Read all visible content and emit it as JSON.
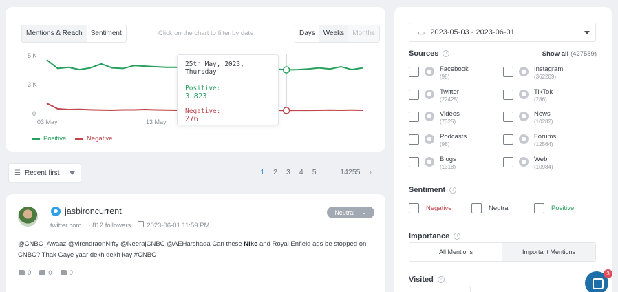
{
  "chart": {
    "tabs": [
      "Mentions & Reach",
      "Sentiment"
    ],
    "hint": "Click on the chart to filter by date",
    "period_tabs": [
      "Days",
      "Weeks",
      "Months"
    ],
    "y_ticks": [
      "5 K",
      "3 K",
      "0"
    ],
    "x_ticks": [
      "03 May",
      "13 May"
    ],
    "legend": {
      "positive": "Positive",
      "negative": "Negative"
    },
    "colors": {
      "positive": "#27a05e",
      "negative": "#c0454c"
    },
    "tooltip": {
      "date": "25th May, 2023, Thursday",
      "positive_label": "Positive:",
      "positive_value": "3 823",
      "negative_label": "Negative:",
      "negative_value": "276"
    }
  },
  "chart_data": {
    "type": "line",
    "x": [
      "2023-05-03",
      "2023-05-04",
      "2023-05-05",
      "2023-05-06",
      "2023-05-07",
      "2023-05-08",
      "2023-05-09",
      "2023-05-10",
      "2023-05-11",
      "2023-05-12",
      "2023-05-13",
      "2023-05-14",
      "2023-05-15",
      "2023-05-16",
      "2023-05-17",
      "2023-05-18",
      "2023-05-19",
      "2023-05-20",
      "2023-05-21",
      "2023-05-22",
      "2023-05-23",
      "2023-05-24",
      "2023-05-25",
      "2023-05-26",
      "2023-05-27",
      "2023-05-28",
      "2023-05-29",
      "2023-05-30",
      "2023-05-31",
      "2023-06-01"
    ],
    "series": [
      {
        "name": "Positive",
        "values": [
          4700,
          3950,
          4050,
          3850,
          4000,
          4350,
          4000,
          3950,
          4200,
          4150,
          4100,
          4050,
          4050,
          3850,
          3900,
          3950,
          3950,
          3900,
          4050,
          3950,
          3950,
          3900,
          3823,
          3850,
          3900,
          4000,
          3900,
          4100,
          3850,
          4000
        ]
      },
      {
        "name": "Negative",
        "values": [
          900,
          420,
          360,
          380,
          340,
          320,
          300,
          330,
          330,
          360,
          330,
          320,
          300,
          320,
          330,
          310,
          300,
          320,
          300,
          310,
          320,
          300,
          276,
          300,
          290,
          300,
          320,
          300,
          320,
          300
        ]
      }
    ],
    "ylim": [
      0,
      5000
    ],
    "y_ticks": [
      "5 K",
      "3 K",
      "0"
    ],
    "x_ticks": [
      "03 May",
      "13 May"
    ],
    "grid": false,
    "legend": "bottom-left"
  },
  "toolbar": {
    "sort_label": "Recent first",
    "pages": [
      "1",
      "2",
      "3",
      "4",
      "5",
      "...",
      "14255"
    ],
    "current_page": "1"
  },
  "mention": {
    "author": "jasbironcurrent",
    "source": "twitter.com",
    "followers": "812 followers",
    "datetime": "2023-06-01 11:59 PM",
    "sentiment": "Neutral",
    "text_before": "@CNBC_Awaaz @virendraonNifty @NeerajCNBC @AEHarshada Can these ",
    "keyword": "Nike",
    "text_after": " and Royal Enfield ads be stopped on CNBC? Thak Gaye yaar dekh dekh kay #CNBC",
    "comments": "0",
    "likes": "0",
    "shares": "0"
  },
  "filters": {
    "date_range": "2023-05-03 - 2023-06-01",
    "sources_title": "Sources",
    "show_all": "Show all",
    "show_all_count": "(427589)",
    "sources": [
      {
        "name": "Facebook",
        "count": "(98)"
      },
      {
        "name": "Instagram",
        "count": "(362209)"
      },
      {
        "name": "Twitter",
        "count": "(22425)"
      },
      {
        "name": "TikTok",
        "count": "(286)"
      },
      {
        "name": "Videos",
        "count": "(7325)"
      },
      {
        "name": "News",
        "count": "(10282)"
      },
      {
        "name": "Podcasts",
        "count": "(98)"
      },
      {
        "name": "Forums",
        "count": "(12564)"
      },
      {
        "name": "Blogs",
        "count": "(1318)"
      },
      {
        "name": "Web",
        "count": "(10984)"
      }
    ],
    "sentiment_title": "Sentiment",
    "sentiments": [
      "Negative",
      "Neutral",
      "Positive"
    ],
    "importance_title": "Importance",
    "importance_options": [
      "All Mentions",
      "Important Mentions"
    ],
    "visited_title": "Visited"
  },
  "chat": {
    "badge": "3"
  }
}
